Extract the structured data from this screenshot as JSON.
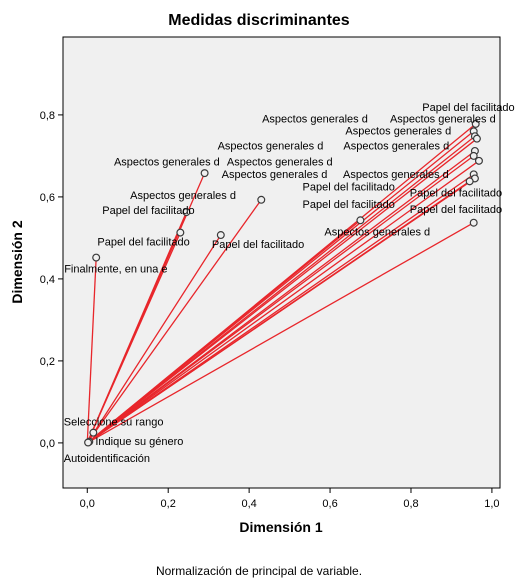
{
  "chart_data": {
    "type": "scatter",
    "title": "Medidas discriminantes",
    "xlabel": "Dimensión 1",
    "ylabel": "Dimensión 2",
    "footnote": "Normalización de principal de variable.",
    "xlim": [
      -0.06,
      1.02
    ],
    "ylim": [
      -0.11,
      0.99
    ],
    "xticks": [
      "0,0",
      "0,2",
      "0,4",
      "0,6",
      "0,8",
      "1,0"
    ],
    "yticks": [
      "0,0",
      "0,2",
      "0,4",
      "0,6",
      "0,8"
    ],
    "xtick_values": [
      0,
      0.2,
      0.4,
      0.6,
      0.8,
      1.0
    ],
    "ytick_values": [
      0,
      0.2,
      0.4,
      0.6,
      0.8
    ],
    "grid": false,
    "colors": {
      "line": "#e8262b",
      "marker_edge": "#3a3a3a",
      "plot_bg": "#f0f0f0",
      "frame": "#000000"
    },
    "points": [
      {
        "label": "Papel del facilitado",
        "x": 0.96,
        "y": 0.778
      },
      {
        "label": "Aspectos generales d",
        "x": 0.955,
        "y": 0.76
      },
      {
        "label": "Aspectos generales d",
        "x": 0.958,
        "y": 0.748
      },
      {
        "label": "Aspectos generales d",
        "x": 0.963,
        "y": 0.742
      },
      {
        "label": "Aspectos generales d",
        "x": 0.958,
        "y": 0.712
      },
      {
        "label": "Aspectos generales d",
        "x": 0.955,
        "y": 0.7
      },
      {
        "label": "Aspectos generales d",
        "x": 0.968,
        "y": 0.688
      },
      {
        "label": "Aspectos generales d",
        "x": 0.955,
        "y": 0.655
      },
      {
        "label": "Papel del facilitado",
        "x": 0.958,
        "y": 0.645
      },
      {
        "label": "Papel del facilitado",
        "x": 0.945,
        "y": 0.638
      },
      {
        "label": "Papel del facilitado",
        "x": 0.955,
        "y": 0.537
      },
      {
        "label": "Aspectos generales d",
        "x": 0.29,
        "y": 0.658
      },
      {
        "label": "Aspectos generales d",
        "x": 0.43,
        "y": 0.593
      },
      {
        "label": "Papel del facilitado",
        "x": 0.675,
        "y": 0.543
      },
      {
        "label": "Papel del facilitado",
        "x": 0.245,
        "y": 0.563
      },
      {
        "label": "Papel del facilitado",
        "x": 0.23,
        "y": 0.513
      },
      {
        "label": "Papel del facilitado",
        "x": 0.33,
        "y": 0.507
      },
      {
        "label": "Finalmente, en una e",
        "x": 0.022,
        "y": 0.452
      },
      {
        "label": "Seleccione su rango",
        "x": 0.015,
        "y": 0.025
      },
      {
        "label": "Indique su género",
        "x": 0.005,
        "y": 0.003
      },
      {
        "label": "Autoidentificación",
        "x": 0.002,
        "y": 0.001
      }
    ],
    "labels": [
      {
        "text": "Papel del facilitado",
        "x": 0.828,
        "y": 0.81
      },
      {
        "text": "Aspectos generales d",
        "x": 0.432,
        "y": 0.782
      },
      {
        "text": "Aspectos generales d",
        "x": 0.748,
        "y": 0.782
      },
      {
        "text": "Aspectos generales d",
        "x": 0.638,
        "y": 0.752
      },
      {
        "text": "Aspectos generales d",
        "x": 0.322,
        "y": 0.716
      },
      {
        "text": "Aspectos generales d",
        "x": 0.633,
        "y": 0.716
      },
      {
        "text": "Aspectos generales d",
        "x": 0.066,
        "y": 0.677
      },
      {
        "text": "Aspectos generales d",
        "x": 0.345,
        "y": 0.677
      },
      {
        "text": "Aspectos generales d",
        "x": 0.332,
        "y": 0.646
      },
      {
        "text": "Aspectos generales d",
        "x": 0.632,
        "y": 0.646
      },
      {
        "text": "Papel del facilitado",
        "x": 0.532,
        "y": 0.616
      },
      {
        "text": "Papel del facilitado",
        "x": 0.797,
        "y": 0.601
      },
      {
        "text": "Aspectos generales d",
        "x": 0.106,
        "y": 0.595
      },
      {
        "text": "Papel del facilitado",
        "x": 0.532,
        "y": 0.573
      },
      {
        "text": "Papel del facilitado",
        "x": 0.797,
        "y": 0.561
      },
      {
        "text": "Papel del facilitado",
        "x": 0.037,
        "y": 0.558
      },
      {
        "text": "Aspectos generales d",
        "x": 0.586,
        "y": 0.506
      },
      {
        "text": "Papel del facilitado",
        "x": 0.025,
        "y": 0.481
      },
      {
        "text": "Papel del facilitado",
        "x": 0.308,
        "y": 0.475
      },
      {
        "text": "Finalmente, en una e",
        "x": -0.057,
        "y": 0.416
      },
      {
        "text": "Seleccione su rango",
        "x": -0.058,
        "y": 0.042
      },
      {
        "text": "Indique su género",
        "x": 0.02,
        "y": -0.005
      },
      {
        "text": "Autoidentificación",
        "x": -0.058,
        "y": -0.047
      }
    ]
  }
}
